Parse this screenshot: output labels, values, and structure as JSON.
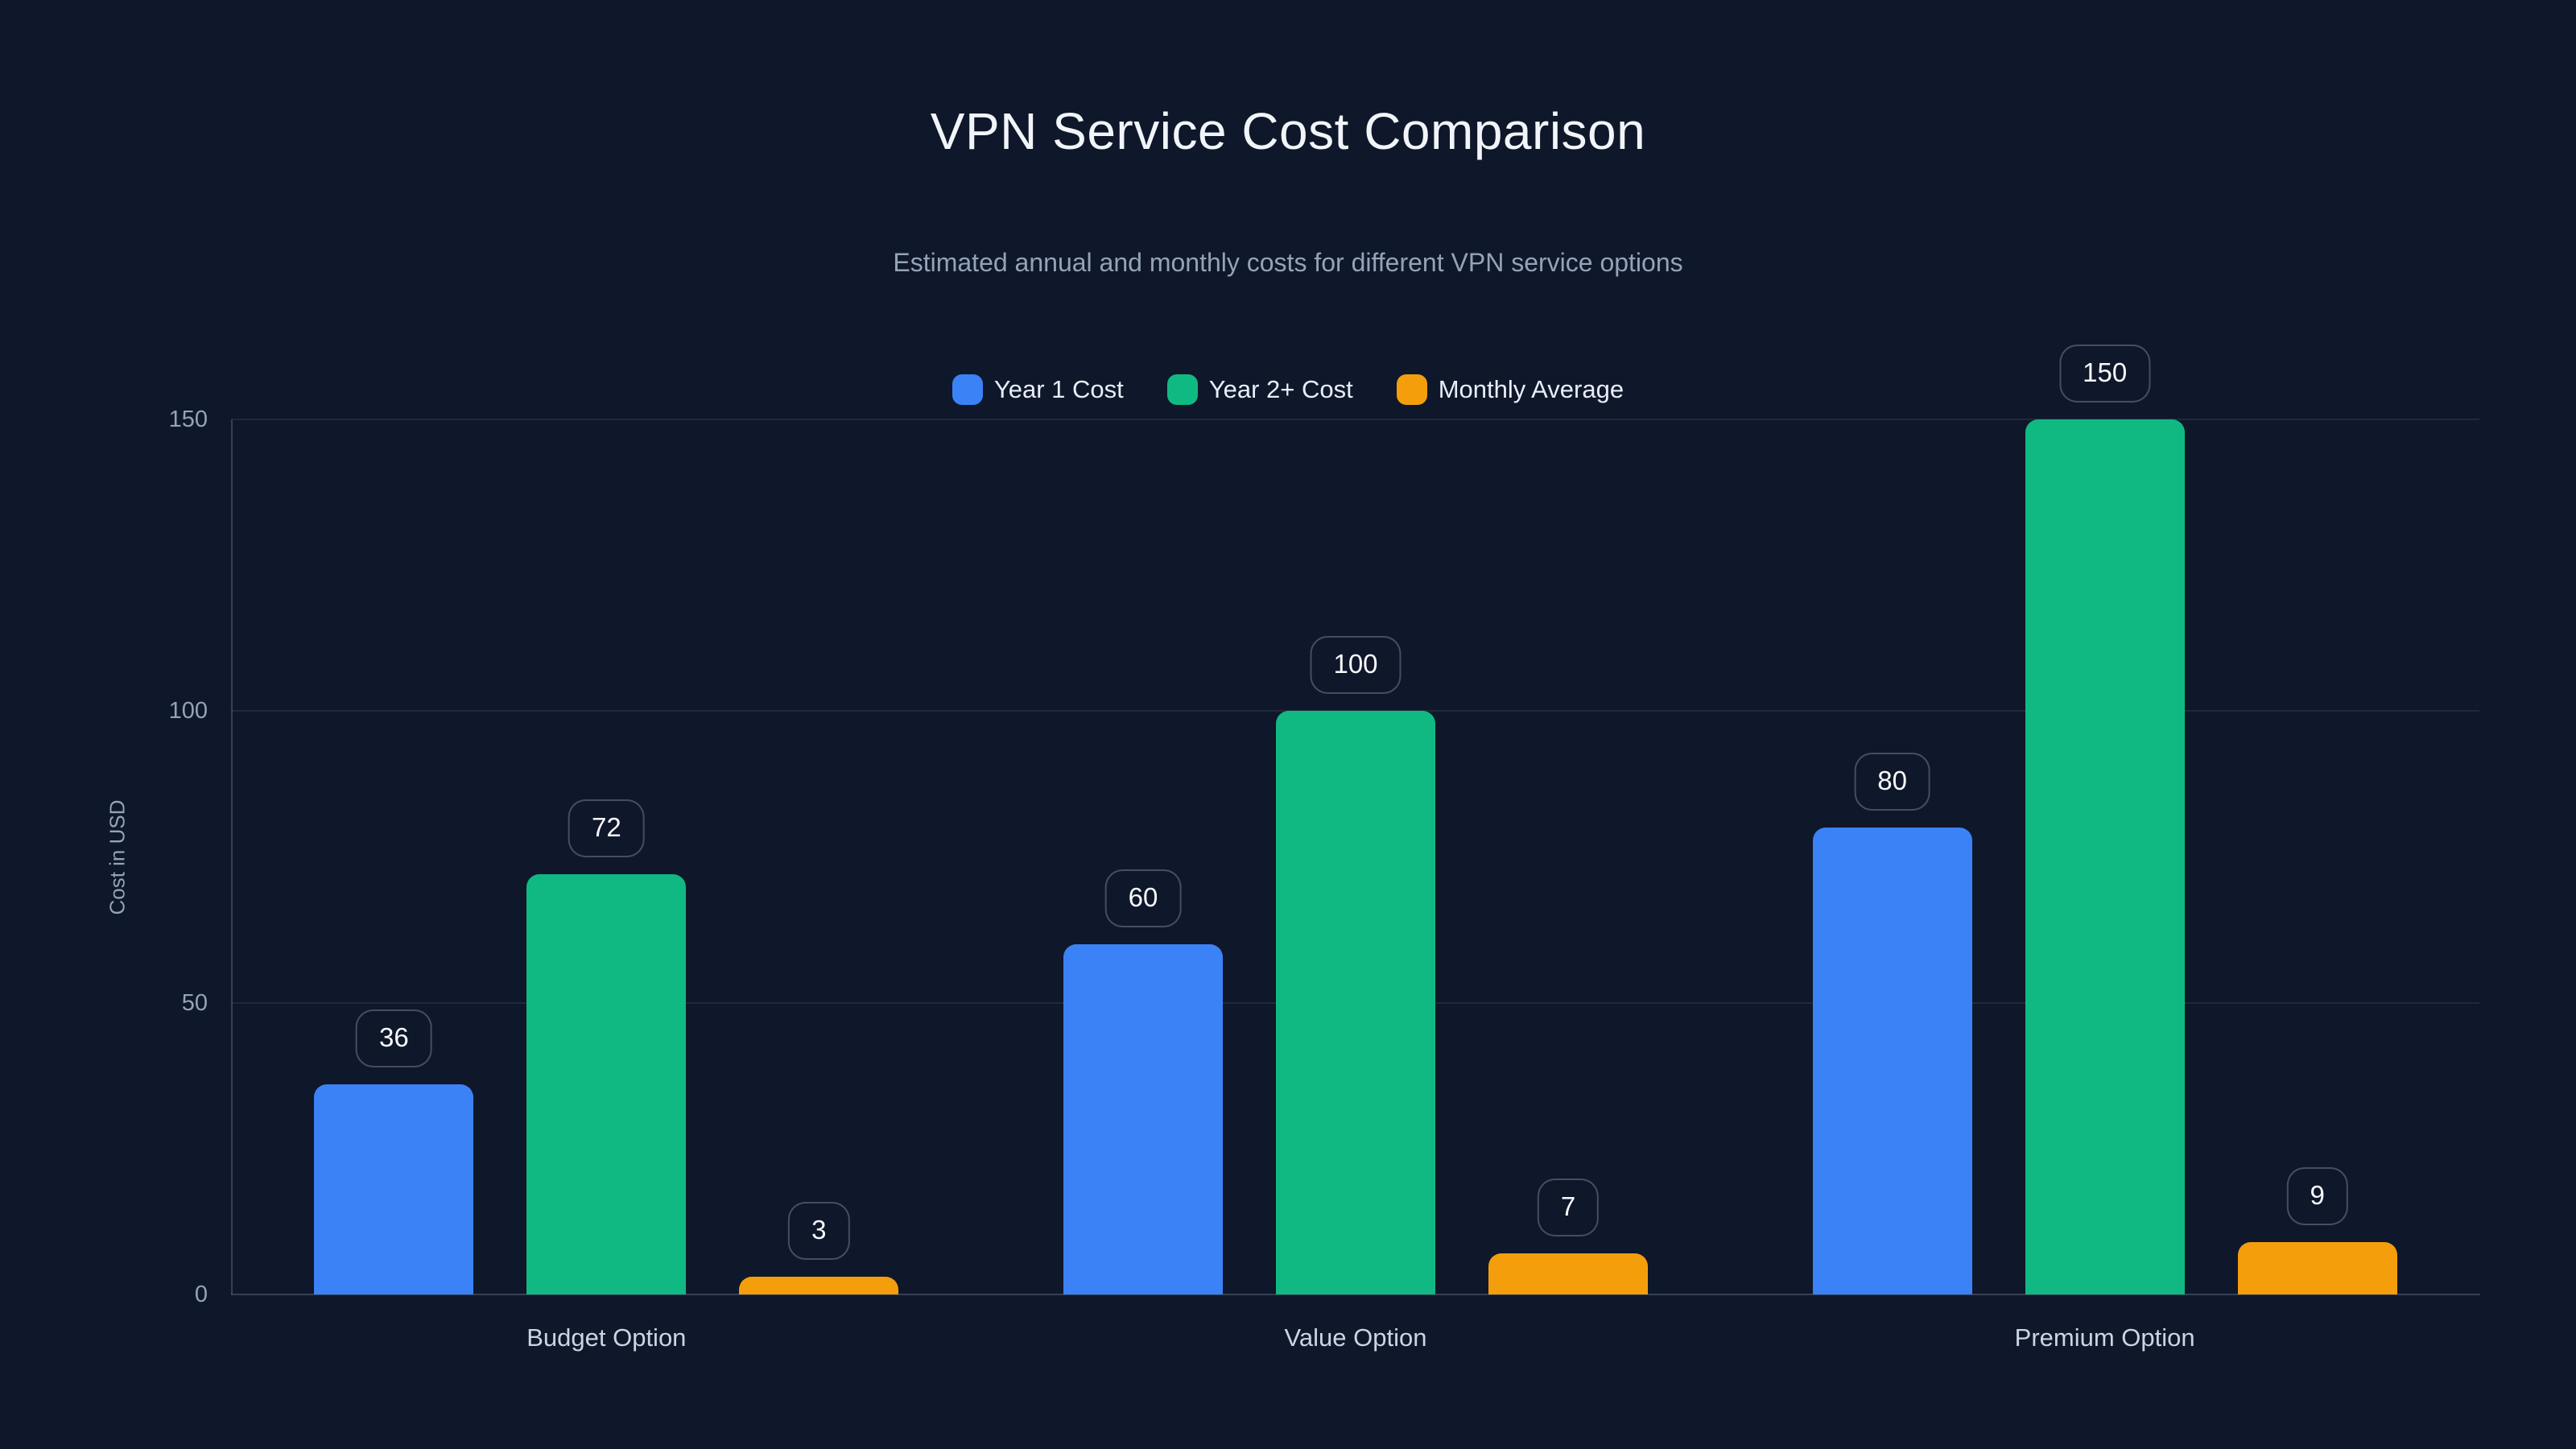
{
  "header": {
    "title": "VPN Service Cost Comparison",
    "subtitle": "Estimated annual and monthly costs for different VPN service options"
  },
  "chart_data": {
    "type": "bar",
    "title": "VPN Service Cost Comparison",
    "subtitle": "Estimated annual and monthly costs for different VPN service options",
    "categories": [
      "Budget Option",
      "Value Option",
      "Premium Option"
    ],
    "series": [
      {
        "name": "Year 1 Cost",
        "color": "#3b82f6",
        "values": [
          36,
          60,
          80
        ]
      },
      {
        "name": "Year 2+ Cost",
        "color": "#10b981",
        "values": [
          72,
          100,
          150
        ]
      },
      {
        "name": "Monthly Average",
        "color": "#f59e0b",
        "values": [
          3,
          7,
          9
        ]
      }
    ],
    "ylabel": "Cost in USD",
    "yticks": [
      0,
      50,
      100,
      150
    ],
    "ylim": [
      0,
      150
    ],
    "grid": true,
    "legend_position": "top",
    "value_labels": true,
    "background": "#0f172a"
  }
}
